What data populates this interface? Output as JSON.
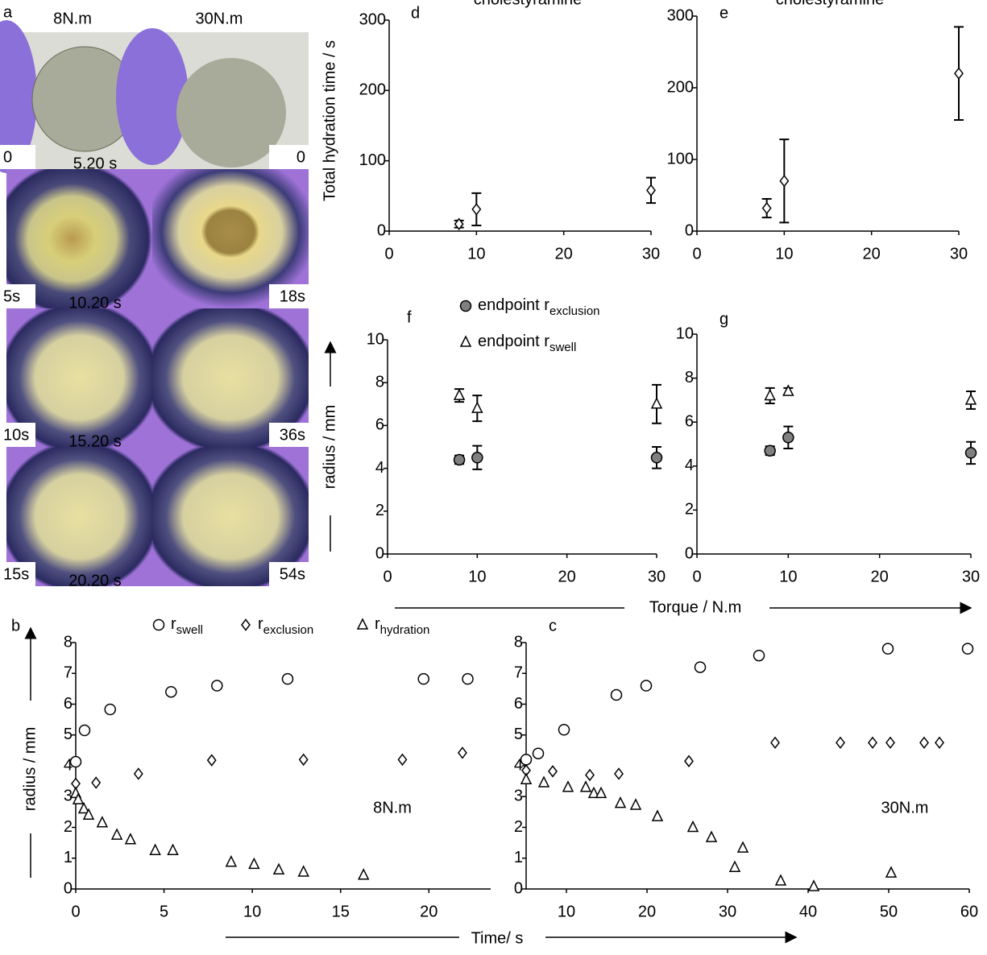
{
  "photo_panel": {
    "label": "a",
    "columns": [
      "8N.m",
      "30N.m"
    ],
    "frame_labels": [
      [
        "0",
        "0"
      ],
      [
        "5s",
        "18s"
      ],
      [
        "10s",
        "36s"
      ],
      [
        "15s",
        "54s"
      ]
    ],
    "timestamps": [
      "5.20 s",
      "10.20 s",
      "15.20 s",
      "20.20 s"
    ]
  },
  "figure_labels": {
    "torque": "Torque / N.m",
    "time": "Time/ s"
  },
  "chart_data": [
    {
      "type": "scatter",
      "label": "d",
      "title": "cholestyramine",
      "ylabel": "Total hydration time / s",
      "xlim": [
        0,
        30
      ],
      "ylim": [
        0,
        300
      ],
      "xticks": [
        0,
        10,
        20,
        30
      ],
      "yticks": [
        0,
        100,
        200,
        300
      ],
      "series": [
        {
          "marker": "diamond",
          "color": "#ffffff",
          "x": [
            8,
            10,
            30
          ],
          "values": [
            10,
            31,
            58
          ],
          "errors": [
            5,
            23,
            18
          ]
        }
      ]
    },
    {
      "type": "scatter",
      "label": "e",
      "title": "cholestyramine",
      "xlim": [
        0,
        30
      ],
      "ylim": [
        0,
        300
      ],
      "xticks": [
        0,
        10,
        20,
        30
      ],
      "yticks": [
        0,
        100,
        200,
        300
      ],
      "series": [
        {
          "marker": "diamond",
          "color": "#ffffff",
          "x": [
            8,
            10,
            30
          ],
          "values": [
            32,
            70,
            220
          ],
          "errors": [
            13,
            58,
            65
          ]
        }
      ]
    },
    {
      "type": "scatter",
      "label": "f",
      "ylabel": "radius / mm",
      "xlim": [
        0,
        30
      ],
      "ylim": [
        0,
        10
      ],
      "xticks": [
        0,
        10,
        20,
        30
      ],
      "yticks": [
        0,
        2,
        4,
        6,
        8,
        10
      ],
      "series": [
        {
          "name": "endpoint r",
          "subscript": "exclusion",
          "marker": "circle",
          "color": "#808080",
          "x": [
            8,
            10,
            30
          ],
          "values": [
            4.4,
            4.5,
            4.5
          ],
          "errors": [
            0.2,
            0.55,
            0.5
          ]
        },
        {
          "name": "endpoint r",
          "subscript": "swell",
          "marker": "triangle",
          "color": "#ffffff",
          "x": [
            8,
            10,
            30
          ],
          "values": [
            7.4,
            6.8,
            7.0
          ],
          "errors": [
            0.3,
            0.6,
            0.9
          ]
        }
      ]
    },
    {
      "type": "scatter",
      "label": "g",
      "xlim": [
        0,
        30
      ],
      "ylim": [
        0,
        10
      ],
      "xticks": [
        0,
        10,
        20,
        30
      ],
      "yticks": [
        0,
        2,
        4,
        6,
        8,
        10
      ],
      "series": [
        {
          "marker": "circle",
          "color": "#808080",
          "x": [
            8,
            10,
            30
          ],
          "values": [
            4.7,
            5.3,
            4.6
          ],
          "errors": [
            0.2,
            0.5,
            0.5
          ]
        },
        {
          "marker": "triangle",
          "color": "#ffffff",
          "x": [
            8,
            10,
            30
          ],
          "values": [
            7.2,
            7.4,
            7.0
          ],
          "errors": [
            0.35,
            0.15,
            0.4
          ]
        }
      ]
    },
    {
      "type": "scatter",
      "label": "b",
      "ylabel": "radius / mm",
      "annotation": "8N.m",
      "xlim": [
        0,
        23.5
      ],
      "ylim": [
        0,
        8
      ],
      "xticks": [
        0,
        5,
        10,
        15,
        20
      ],
      "yticks": [
        0,
        1,
        2,
        3,
        4,
        5,
        6,
        7,
        8
      ],
      "series": [
        {
          "name": "r",
          "subscript": "swell",
          "marker": "circle",
          "color": "#ffffff",
          "x": [
            0,
            0.5,
            1.95,
            5.4,
            8.0,
            12.0,
            19.7,
            22.2
          ],
          "values": [
            4.13,
            5.15,
            5.83,
            6.4,
            6.6,
            6.82,
            6.82,
            6.82
          ]
        },
        {
          "name": "r",
          "subscript": "exclusion",
          "marker": "diamond",
          "color": "#ffffff",
          "x": [
            0,
            1.15,
            3.55,
            7.7,
            12.9,
            18.5,
            21.9
          ],
          "values": [
            3.42,
            3.45,
            3.74,
            4.18,
            4.2,
            4.2,
            4.42
          ]
        },
        {
          "name": "r",
          "subscript": "hydration",
          "marker": "triangle",
          "color": "#ffffff",
          "x": [
            0,
            0.14,
            0.46,
            0.73,
            1.5,
            2.33,
            3.1,
            4.5,
            5.5,
            8.8,
            10.1,
            11.5,
            12.9,
            16.3
          ],
          "values": [
            3.1,
            2.9,
            2.6,
            2.4,
            2.15,
            1.75,
            1.6,
            1.25,
            1.25,
            0.87,
            0.8,
            0.62,
            0.55,
            0.45
          ]
        }
      ]
    },
    {
      "type": "scatter",
      "label": "c",
      "annotation": "30N.m",
      "xlim": [
        5,
        60
      ],
      "ylim": [
        0,
        8
      ],
      "xticks": [
        10,
        20,
        30,
        40,
        50,
        60
      ],
      "yticks": [
        0,
        1,
        2,
        3,
        4,
        5,
        6,
        7,
        8
      ],
      "series": [
        {
          "marker": "circle",
          "color": "#ffffff",
          "x": [
            5,
            6.5,
            9.7,
            16.2,
            19.9,
            26.6,
            33.9,
            49.9,
            59.8
          ],
          "values": [
            4.2,
            4.4,
            5.17,
            6.3,
            6.6,
            7.2,
            7.58,
            7.8,
            7.8
          ]
        },
        {
          "marker": "diamond",
          "color": "#ffffff",
          "x": [
            5,
            8.3,
            12.9,
            16.5,
            25.2,
            35.9,
            44,
            48,
            50.2,
            54.4,
            56.3
          ],
          "values": [
            3.85,
            3.82,
            3.7,
            3.74,
            4.15,
            4.75,
            4.75,
            4.75,
            4.75,
            4.75,
            4.75
          ]
        },
        {
          "marker": "triangle",
          "color": "#ffffff",
          "x": [
            5,
            7.2,
            10.2,
            12.4,
            13.4,
            14.3,
            16.7,
            18.6,
            21.3,
            25.7,
            28,
            31.9,
            30.9,
            36.6,
            40.7,
            50.3
          ],
          "values": [
            3.55,
            3.45,
            3.3,
            3.3,
            3.1,
            3.1,
            2.78,
            2.72,
            2.35,
            2.0,
            1.67,
            1.33,
            0.7,
            0.26,
            0.08,
            0.52
          ]
        }
      ]
    }
  ]
}
